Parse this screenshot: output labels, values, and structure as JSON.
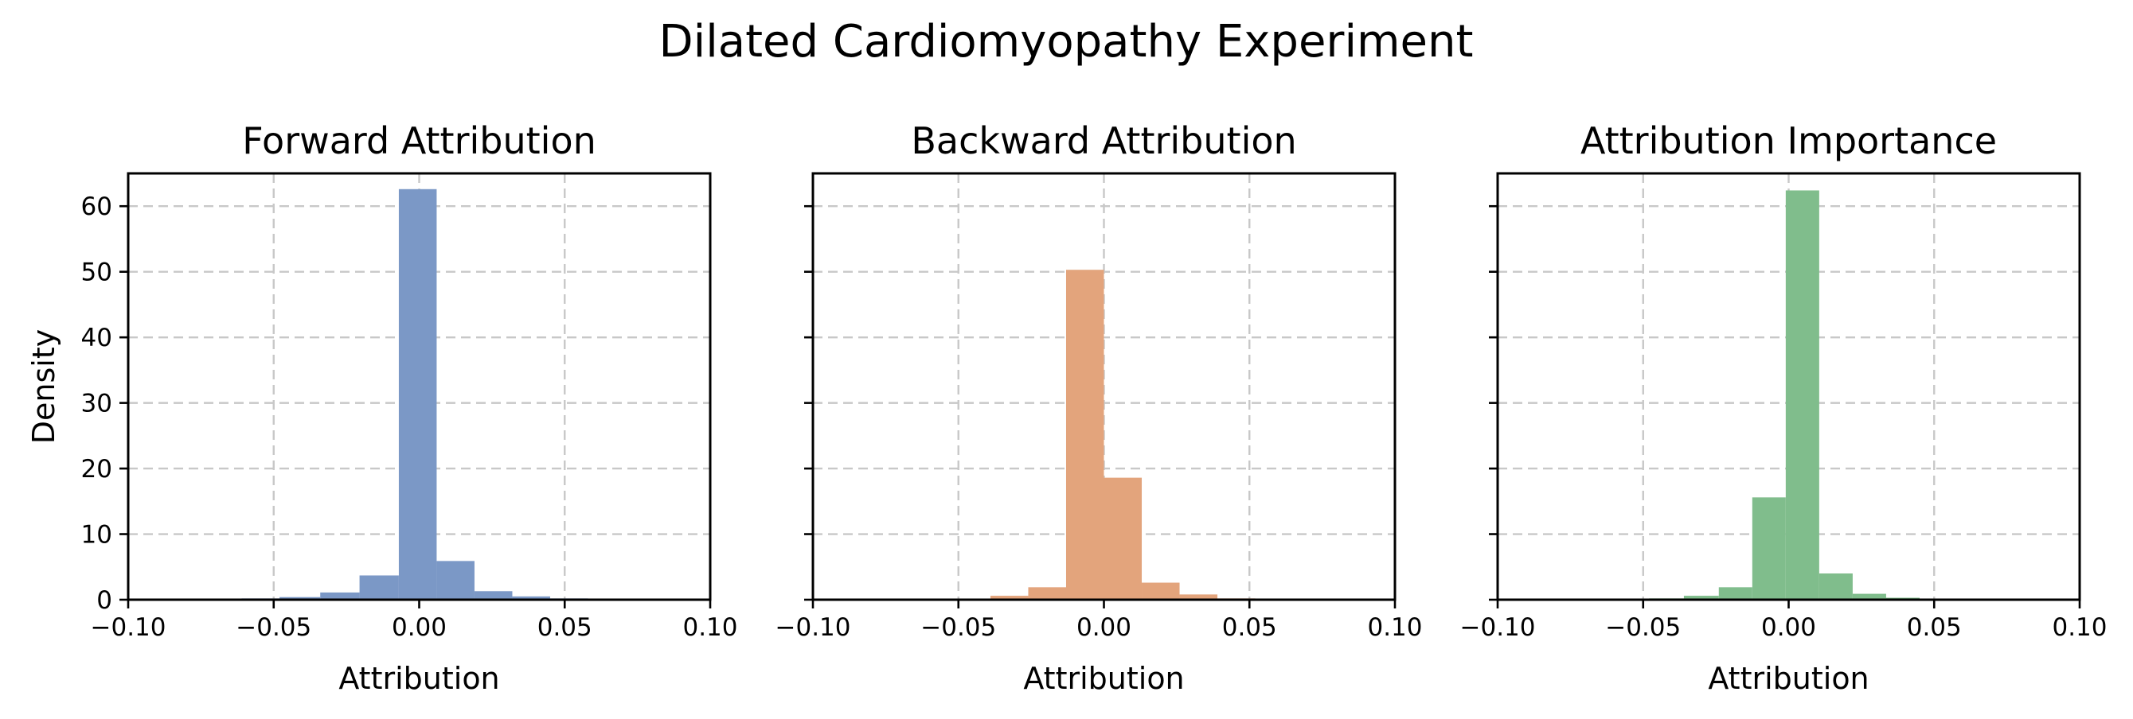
{
  "figure_title": "Dilated Cardiomyopathy Experiment",
  "chart_data": [
    {
      "type": "bar",
      "title": "Forward Attribution",
      "xlabel": "Attribution",
      "ylabel": "Density",
      "xlim": [
        -0.1,
        0.1
      ],
      "ylim": [
        0,
        65
      ],
      "xticks": [
        "−0.10",
        "−0.05",
        "0.00",
        "0.05",
        "0.10"
      ],
      "xtick_values": [
        -0.1,
        -0.05,
        0.0,
        0.05,
        0.1
      ],
      "yticks": [
        "0",
        "10",
        "20",
        "30",
        "40",
        "50",
        "60"
      ],
      "ytick_values": [
        0,
        10,
        20,
        30,
        40,
        50,
        60
      ],
      "grid": true,
      "color": "#7b98c6",
      "bins": [
        {
          "x0": -0.061,
          "x1": -0.048,
          "y": 0.2
        },
        {
          "x0": -0.048,
          "x1": -0.034,
          "y": 0.4
        },
        {
          "x0": -0.034,
          "x1": -0.0205,
          "y": 1.1
        },
        {
          "x0": -0.0205,
          "x1": -0.007,
          "y": 3.7
        },
        {
          "x0": -0.007,
          "x1": 0.006,
          "y": 62.6
        },
        {
          "x0": 0.006,
          "x1": 0.019,
          "y": 5.9
        },
        {
          "x0": 0.019,
          "x1": 0.032,
          "y": 1.3
        },
        {
          "x0": 0.032,
          "x1": 0.045,
          "y": 0.5
        },
        {
          "x0": 0.045,
          "x1": 0.058,
          "y": 0.2
        }
      ]
    },
    {
      "type": "bar",
      "title": "Backward Attribution",
      "xlabel": "Attribution",
      "ylabel": "",
      "xlim": [
        -0.1,
        0.1
      ],
      "ylim": [
        0,
        65
      ],
      "xticks": [
        "−0.10",
        "−0.05",
        "0.00",
        "0.05",
        "0.10"
      ],
      "xtick_values": [
        -0.1,
        -0.05,
        0.0,
        0.05,
        0.1
      ],
      "yticks": [],
      "ytick_values": [
        0,
        10,
        20,
        30,
        40,
        50,
        60
      ],
      "grid": true,
      "color": "#e3a47c",
      "bins": [
        {
          "x0": -0.052,
          "x1": -0.039,
          "y": 0.1
        },
        {
          "x0": -0.039,
          "x1": -0.026,
          "y": 0.6
        },
        {
          "x0": -0.026,
          "x1": -0.013,
          "y": 1.9
        },
        {
          "x0": -0.013,
          "x1": 0.0,
          "y": 50.3
        },
        {
          "x0": 0.0,
          "x1": 0.013,
          "y": 18.6
        },
        {
          "x0": 0.013,
          "x1": 0.026,
          "y": 2.6
        },
        {
          "x0": 0.026,
          "x1": 0.039,
          "y": 0.8
        },
        {
          "x0": 0.039,
          "x1": 0.052,
          "y": 0.2
        }
      ]
    },
    {
      "type": "bar",
      "title": "Attribution Importance",
      "xlabel": "Attribution",
      "ylabel": "",
      "xlim": [
        -0.1,
        0.1
      ],
      "ylim": [
        0,
        65
      ],
      "xticks": [
        "−0.10",
        "−0.05",
        "0.00",
        "0.05",
        "0.10"
      ],
      "xtick_values": [
        -0.1,
        -0.05,
        0.0,
        0.05,
        0.1
      ],
      "yticks": [],
      "ytick_values": [
        0,
        10,
        20,
        30,
        40,
        50,
        60
      ],
      "grid": true,
      "color": "#80bd8c",
      "bins": [
        {
          "x0": -0.048,
          "x1": -0.036,
          "y": 0.2
        },
        {
          "x0": -0.036,
          "x1": -0.024,
          "y": 0.6
        },
        {
          "x0": -0.024,
          "x1": -0.0125,
          "y": 1.9
        },
        {
          "x0": -0.0125,
          "x1": -0.001,
          "y": 15.6
        },
        {
          "x0": -0.001,
          "x1": 0.0105,
          "y": 62.4
        },
        {
          "x0": 0.0105,
          "x1": 0.022,
          "y": 4.0
        },
        {
          "x0": 0.022,
          "x1": 0.0335,
          "y": 0.9
        },
        {
          "x0": 0.0335,
          "x1": 0.045,
          "y": 0.3
        }
      ]
    }
  ]
}
